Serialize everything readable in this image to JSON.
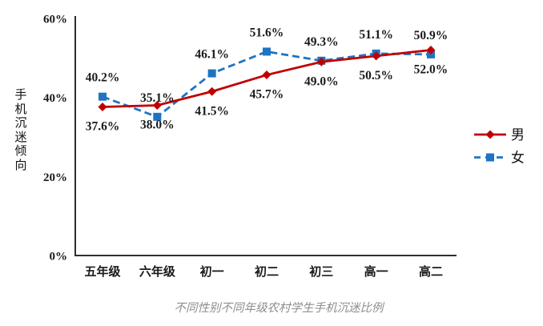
{
  "chart_data": {
    "type": "line",
    "caption": "不同性别不同年级农村学生手机沉迷比例",
    "ylabel": "手机沉迷倾向",
    "categories": [
      "五年级",
      "六年级",
      "初一",
      "初二",
      "初三",
      "高一",
      "高二"
    ],
    "series": [
      {
        "name": "男",
        "color": "#c00000",
        "line_style": "solid",
        "marker": "diamond",
        "values": [
          37.6,
          38.0,
          41.5,
          45.7,
          49.0,
          50.5,
          52.0
        ],
        "label_position": "below"
      },
      {
        "name": "女",
        "color": "#1e74c2",
        "line_style": "dashed",
        "marker": "square",
        "values": [
          40.2,
          35.1,
          46.1,
          51.6,
          49.3,
          51.1,
          50.9
        ],
        "label_position": "above"
      }
    ],
    "value_suffix": "%",
    "ylim": [
      0,
      60
    ],
    "y_ticks": [
      {
        "value": 60,
        "label": "60%"
      },
      {
        "value": 40,
        "label": "40%"
      },
      {
        "value": 20,
        "label": "20%"
      },
      {
        "value": 0,
        "label": "0%"
      }
    ],
    "grid": false,
    "legend_position": "right",
    "axis_color": "#2e2e2e",
    "text_color": "#1a1a1a",
    "caption_color": "#8e8e8e"
  }
}
